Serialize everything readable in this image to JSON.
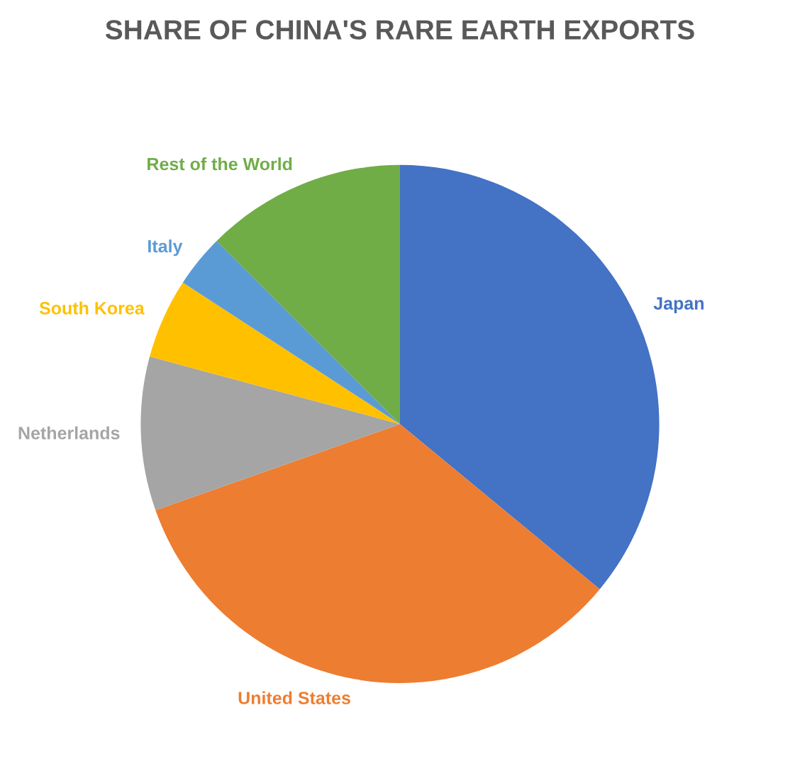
{
  "chart_data": {
    "type": "pie",
    "title": "SHARE OF CHINA'S RARE EARTH EXPORTS",
    "categories": [
      "Japan",
      "United States",
      "Netherlands",
      "South Korea",
      "Italy",
      "Rest of the World"
    ],
    "values": [
      36,
      33.6,
      9.6,
      5,
      3.3,
      12.5
    ],
    "colors": [
      "#4472c4",
      "#ed7d31",
      "#a5a5a5",
      "#ffc000",
      "#5b9bd5",
      "#70ad47"
    ]
  }
}
